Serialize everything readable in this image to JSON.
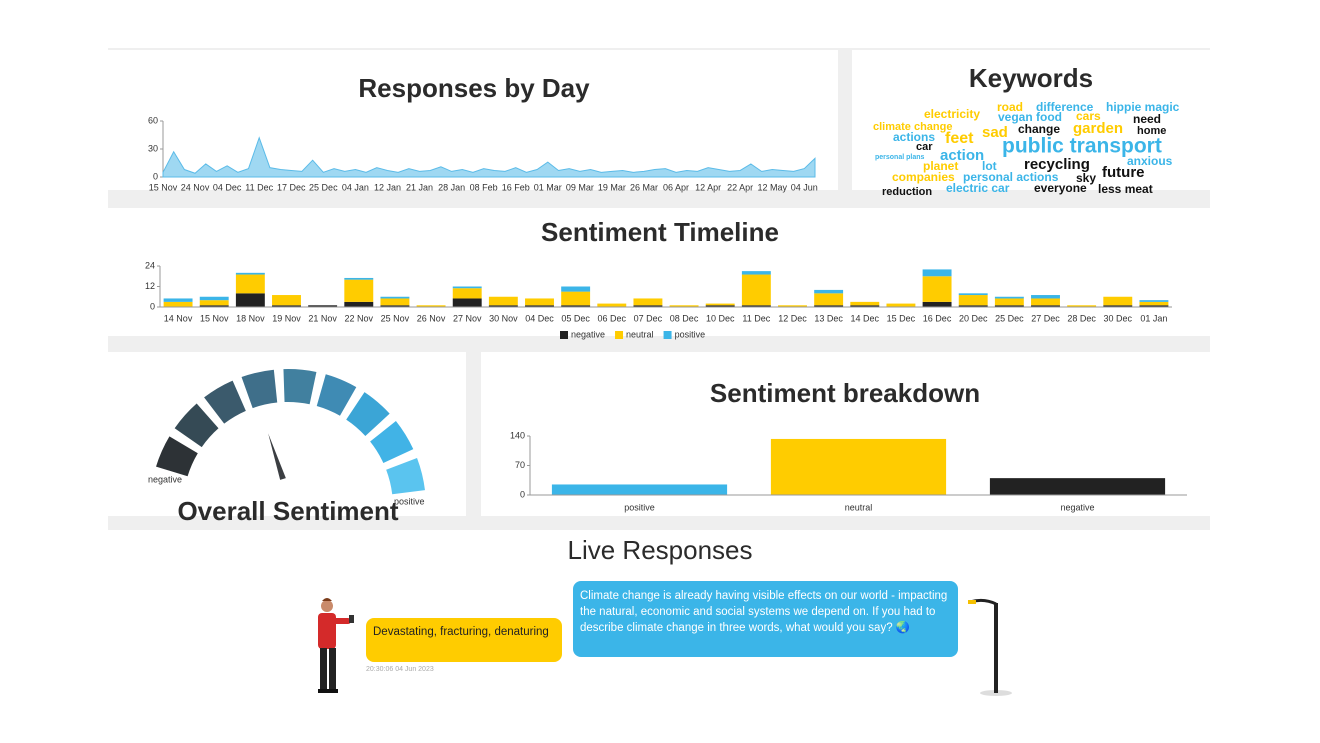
{
  "chart_data": [
    {
      "type": "area",
      "title": "Responses by Day",
      "color": "#9fd8f2",
      "categories": [
        "15 Nov",
        null,
        null,
        "24 Nov",
        null,
        null,
        "04 Dec",
        null,
        null,
        "11 Dec",
        null,
        null,
        "17 Dec",
        null,
        null,
        "25 Dec",
        null,
        null,
        "04 Jan",
        null,
        null,
        "12 Jan",
        null,
        null,
        "21 Jan",
        null,
        null,
        "28 Jan",
        null,
        null,
        "08 Feb",
        null,
        null,
        "16 Feb",
        null,
        null,
        "01 Mar",
        null,
        null,
        "09 Mar",
        null,
        null,
        "19 Mar",
        null,
        null,
        "26 Mar",
        null,
        null,
        "06 Apr",
        null,
        null,
        "12 Apr",
        null,
        null,
        "22 Apr",
        null,
        null,
        "12 May",
        null,
        null,
        "04 Jun",
        null
      ],
      "values": [
        5,
        27,
        8,
        4,
        14,
        6,
        12,
        5,
        9,
        42,
        10,
        8,
        7,
        6,
        18,
        5,
        9,
        6,
        8,
        5,
        10,
        7,
        5,
        9,
        6,
        7,
        11,
        6,
        8,
        5,
        9,
        7,
        6,
        10,
        5,
        8,
        16,
        7,
        9,
        6,
        8,
        5,
        6,
        7,
        5,
        6,
        8,
        9,
        5,
        7,
        6,
        10,
        8,
        6,
        7,
        14,
        6,
        8,
        7,
        6,
        9,
        20
      ],
      "ylim": [
        0,
        60
      ],
      "yticks": [
        0,
        30,
        60
      ]
    },
    {
      "type": "stacked-bar",
      "title": "Sentiment Timeline",
      "categories": [
        "14 Nov",
        "15 Nov",
        "18 Nov",
        "19 Nov",
        "21 Nov",
        "22 Nov",
        "25 Nov",
        "26 Nov",
        "27 Nov",
        "30 Nov",
        "04 Dec",
        "05 Dec",
        "06 Dec",
        "07 Dec",
        "08 Dec",
        "10 Dec",
        "11 Dec",
        "12 Dec",
        "13 Dec",
        "14 Dec",
        "15 Dec",
        "16 Dec",
        "20 Dec",
        "25 Dec",
        "27 Dec",
        "28 Dec",
        "30 Dec",
        "01 Jan"
      ],
      "series": [
        {
          "name": "negative",
          "color": "#222222",
          "values": [
            0,
            1,
            8,
            1,
            1,
            3,
            1,
            0,
            5,
            1,
            1,
            1,
            0,
            1,
            0,
            1,
            1,
            0,
            1,
            1,
            0,
            3,
            1,
            1,
            1,
            0,
            1,
            1
          ]
        },
        {
          "name": "neutral",
          "color": "#ffcc00",
          "values": [
            3,
            3,
            11,
            6,
            0,
            13,
            4,
            1,
            6,
            5,
            4,
            8,
            2,
            4,
            1,
            1,
            18,
            1,
            7,
            2,
            2,
            15,
            6,
            4,
            4,
            1,
            5,
            2
          ]
        },
        {
          "name": "positive",
          "color": "#3bb5e8",
          "values": [
            2,
            2,
            1,
            0,
            0,
            1,
            1,
            0,
            1,
            0,
            0,
            3,
            0,
            0,
            0,
            0,
            2,
            0,
            2,
            0,
            0,
            4,
            1,
            1,
            2,
            0,
            0,
            1
          ]
        }
      ],
      "ylim": [
        0,
        24
      ],
      "yticks": [
        0,
        12,
        24
      ]
    },
    {
      "type": "gauge",
      "title": "Overall Sentiment",
      "value": 0.4,
      "xlim": [
        0,
        1
      ],
      "min_label": "negative",
      "max_label": "positive",
      "color": "#3b3e42",
      "colors": [
        "#2d3236",
        "#354a55",
        "#3b5a6c",
        "#3f6f8a",
        "#41809f",
        "#3f8bb4",
        "#3ba5d6",
        "#41b3e6",
        "#5ac4ef"
      ]
    },
    {
      "type": "bar",
      "title": "Sentiment breakdown",
      "categories": [
        "positive",
        "neutral",
        "negative"
      ],
      "values": [
        25,
        133,
        40
      ],
      "colors": [
        "#3bb5e8",
        "#ffcc00",
        "#222222"
      ],
      "ylim": [
        0,
        140
      ],
      "yticks": [
        0,
        70,
        140
      ]
    }
  ],
  "keywords": {
    "title": "Keywords",
    "words": [
      {
        "text": "road",
        "color": "#ffcc00"
      },
      {
        "text": "difference",
        "color": "#3bb5e8"
      },
      {
        "text": "hippie magic",
        "color": "#3bb5e8"
      },
      {
        "text": "electricity",
        "color": "#ffcc00"
      },
      {
        "text": "vegan food",
        "color": "#3bb5e8"
      },
      {
        "text": "cars",
        "color": "#ffcc00"
      },
      {
        "text": "need",
        "color": "#111111"
      },
      {
        "text": "climate change",
        "color": "#ffcc00"
      },
      {
        "text": "change",
        "color": "#111111"
      },
      {
        "text": "garden",
        "color": "#ffcc00"
      },
      {
        "text": "home",
        "color": "#111111"
      },
      {
        "text": "sad",
        "color": "#ffcc00"
      },
      {
        "text": "actions",
        "color": "#3bb5e8"
      },
      {
        "text": "feet",
        "color": "#ffcc00"
      },
      {
        "text": "car",
        "color": "#111111"
      },
      {
        "text": "public transport",
        "color": "#3bb5e8"
      },
      {
        "text": "personal plans",
        "color": "#3bb5e8"
      },
      {
        "text": "action",
        "color": "#3bb5e8"
      },
      {
        "text": "recycling",
        "color": "#111111"
      },
      {
        "text": "anxious",
        "color": "#3bb5e8"
      },
      {
        "text": "planet",
        "color": "#ffcc00"
      },
      {
        "text": "lot",
        "color": "#3bb5e8"
      },
      {
        "text": "future",
        "color": "#111111"
      },
      {
        "text": "companies",
        "color": "#ffcc00"
      },
      {
        "text": "personal actions",
        "color": "#3bb5e8"
      },
      {
        "text": "sky",
        "color": "#111111"
      },
      {
        "text": "reduction",
        "color": "#111111"
      },
      {
        "text": "electric car",
        "color": "#3bb5e8"
      },
      {
        "text": "everyone",
        "color": "#111111"
      },
      {
        "text": "less meat",
        "color": "#111111"
      }
    ]
  },
  "live": {
    "title": "Live Responses",
    "response": {
      "text": "Devastating, fracturing, denaturing",
      "time": "20:30:06  04 Jun 2023"
    },
    "question": "Climate change is already having visible effects on our world - impacting the natural, economic and social systems we depend on. If you had to describe climate change in three words, what would you say? 🌏"
  }
}
